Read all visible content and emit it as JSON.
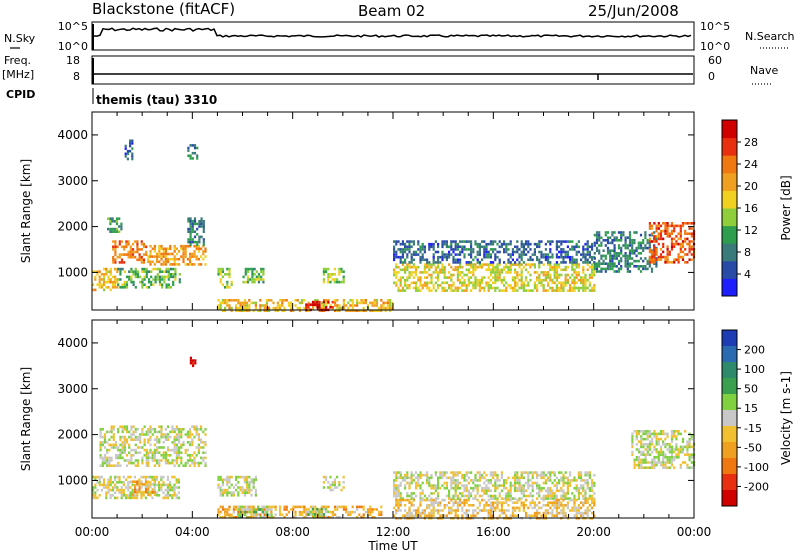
{
  "header": {
    "station": "Blackstone (fitACF)",
    "beam": "Beam 02",
    "date": "25/Jun/2008"
  },
  "panels": {
    "nsky": {
      "label": "N.Sky",
      "right_label": "N.Search",
      "left_ticks": [
        "10^5",
        "10^0"
      ],
      "right_ticks": [
        "10^5",
        "10^0"
      ]
    },
    "freq": {
      "label_line1": "Freq.",
      "label_line2": "[MHz]",
      "right_label": "Nave",
      "left_ticks": [
        "18",
        "8"
      ],
      "right_ticks": [
        "60",
        "0"
      ]
    },
    "cpid": {
      "label": "CPID",
      "value": "themis (tau) 3310"
    }
  },
  "colorbars": {
    "power": {
      "label": "Power [dB]",
      "ticks": [
        "4",
        "8",
        "12",
        "16",
        "20",
        "24",
        "28"
      ],
      "colors": [
        "#1e1eff",
        "#2a4aa8",
        "#3a7a7a",
        "#2e9e4e",
        "#8fce3a",
        "#f0d020",
        "#f0a020",
        "#f07810",
        "#e83010",
        "#d00000"
      ]
    },
    "velocity": {
      "label": "Velocity [m s-1]",
      "ticks": [
        "200",
        "100",
        "50",
        "15",
        "-15",
        "-50",
        "-100",
        "-200"
      ],
      "colors": [
        "#1e3cb4",
        "#2a6ab0",
        "#2e8a6a",
        "#3aa050",
        "#80d040",
        "#c8c8c8",
        "#f0c030",
        "#f0a020",
        "#f07810",
        "#e83010",
        "#d00000"
      ]
    }
  },
  "axes": {
    "ylabel": "Slant Range [km]",
    "xlabel": "Time UT",
    "yticks": [
      "1000",
      "2000",
      "3000",
      "4000"
    ],
    "xticks": [
      "00:00",
      "04:00",
      "08:00",
      "12:00",
      "16:00",
      "20:00",
      "00:00"
    ]
  },
  "chart_data": [
    {
      "type": "heatmap",
      "title": "Power",
      "xlabel": "Time UT",
      "ylabel": "Slant Range [km]",
      "x_range_hours": [
        0,
        24
      ],
      "ylim": [
        180,
        4500
      ],
      "colorbar": {
        "label": "Power [dB]",
        "range": [
          0,
          30
        ]
      },
      "regions": [
        {
          "t": [
            0.6,
            1.2
          ],
          "r": [
            1900,
            2200
          ],
          "value": 10
        },
        {
          "t": [
            0.8,
            2.2
          ],
          "r": [
            1200,
            1700
          ],
          "value": 22
        },
        {
          "t": [
            2.2,
            4.5
          ],
          "r": [
            1200,
            1600
          ],
          "value": 20
        },
        {
          "t": [
            0.0,
            1.0
          ],
          "r": [
            600,
            1100
          ],
          "value": 18
        },
        {
          "t": [
            1.0,
            3.5
          ],
          "r": [
            700,
            1100
          ],
          "value": 12
        },
        {
          "t": [
            3.8,
            4.5
          ],
          "r": [
            1600,
            2200
          ],
          "value": 8
        },
        {
          "t": [
            5.0,
            5.6
          ],
          "r": [
            700,
            1100
          ],
          "value": 14
        },
        {
          "t": [
            6.0,
            6.8
          ],
          "r": [
            800,
            1100
          ],
          "value": 12
        },
        {
          "t": [
            9.2,
            10.0
          ],
          "r": [
            800,
            1100
          ],
          "value": 14
        },
        {
          "t": [
            5.0,
            12.0
          ],
          "r": [
            180,
            420
          ],
          "value": 18
        },
        {
          "t": [
            8.5,
            9.6
          ],
          "r": [
            180,
            380
          ],
          "value": 28
        },
        {
          "t": [
            12.0,
            20.0
          ],
          "r": [
            600,
            1200
          ],
          "value": 16
        },
        {
          "t": [
            12.0,
            20.0
          ],
          "r": [
            1200,
            1700
          ],
          "value": 6
        },
        {
          "t": [
            20.0,
            22.5
          ],
          "r": [
            1000,
            1900
          ],
          "value": 8
        },
        {
          "t": [
            22.2,
            24.0
          ],
          "r": [
            1200,
            2100
          ],
          "value": 24
        },
        {
          "t": [
            1.3,
            1.6
          ],
          "r": [
            3500,
            3900
          ],
          "value": 6
        },
        {
          "t": [
            3.8,
            4.2
          ],
          "r": [
            3500,
            3800
          ],
          "value": 8
        }
      ]
    },
    {
      "type": "heatmap",
      "title": "Velocity",
      "xlabel": "Time UT",
      "ylabel": "Slant Range [km]",
      "x_range_hours": [
        0,
        24
      ],
      "ylim": [
        180,
        4500
      ],
      "colorbar": {
        "label": "Velocity [m s-1]",
        "range": [
          -200,
          200
        ]
      },
      "regions": [
        {
          "t": [
            0.3,
            2.2
          ],
          "r": [
            1300,
            2200
          ],
          "value": 0
        },
        {
          "t": [
            2.2,
            4.5
          ],
          "r": [
            1300,
            2200
          ],
          "value": 0
        },
        {
          "t": [
            0.0,
            3.5
          ],
          "r": [
            600,
            1100
          ],
          "value": -5
        },
        {
          "t": [
            1.5,
            2.5
          ],
          "r": [
            700,
            1000
          ],
          "value": -60
        },
        {
          "t": [
            5.0,
            11.5
          ],
          "r": [
            180,
            450
          ],
          "value": -60
        },
        {
          "t": [
            5.8,
            7.2
          ],
          "r": [
            200,
            450
          ],
          "value": 30
        },
        {
          "t": [
            8.5,
            9.4
          ],
          "r": [
            200,
            400
          ],
          "value": 30
        },
        {
          "t": [
            5.0,
            6.5
          ],
          "r": [
            700,
            1100
          ],
          "value": 0
        },
        {
          "t": [
            9.2,
            10.0
          ],
          "r": [
            800,
            1100
          ],
          "value": 0
        },
        {
          "t": [
            12.0,
            20.0
          ],
          "r": [
            600,
            1200
          ],
          "value": 0
        },
        {
          "t": [
            12.0,
            20.0
          ],
          "r": [
            180,
            600
          ],
          "value": -40
        },
        {
          "t": [
            21.5,
            24.0
          ],
          "r": [
            1300,
            2100
          ],
          "value": 0
        },
        {
          "t": [
            3.9,
            4.1
          ],
          "r": [
            3500,
            3700
          ],
          "value": -200
        }
      ]
    }
  ]
}
